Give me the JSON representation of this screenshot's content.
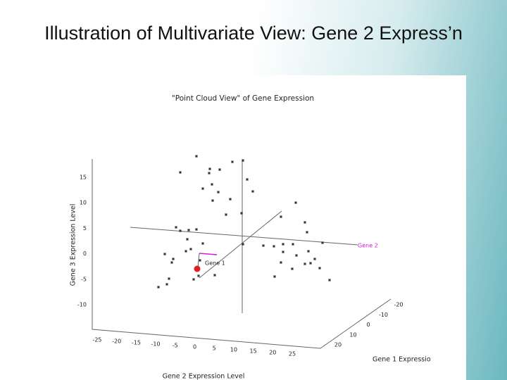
{
  "slide": {
    "title": "Illustration of Multivariate View: Gene 2 Express’n"
  },
  "figure": {
    "title": "\"Point Cloud View\" of Gene Expression",
    "z_axis": {
      "label": "Gene 3 Expression Level",
      "ticks": [
        15,
        10,
        5,
        0,
        -5,
        -10
      ]
    },
    "x_axis": {
      "label": "Gene 2 Expression Level",
      "ticks": [
        -25,
        -20,
        -15,
        -10,
        -5,
        0,
        5,
        10,
        15,
        20,
        25
      ]
    },
    "y_axis": {
      "label": "Gene 1 Expressio",
      "ticks": [
        -20,
        -10,
        0,
        10,
        20
      ]
    },
    "annotations": [
      "Gene 2",
      "Gene 1"
    ]
  }
}
